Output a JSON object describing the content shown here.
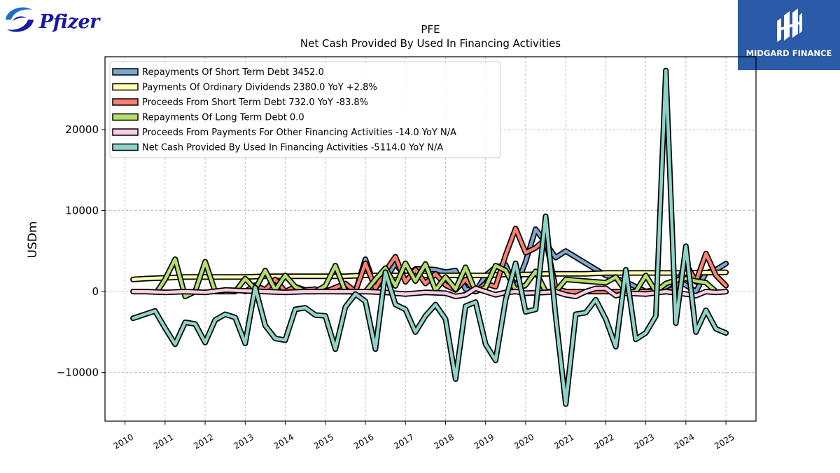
{
  "logo_left": {
    "text": "Pfizer",
    "icon": "pfizer-swirl-icon",
    "color": "#1a1aa6"
  },
  "logo_right": {
    "text": "MIDGARD FINANCE",
    "icon": "midgard-m-icon",
    "background": "#2a5aa8"
  },
  "chart_data": {
    "type": "line",
    "title": "PFE",
    "subtitle": "Net Cash Provided By Used In Financing Activities",
    "xlabel": "",
    "ylabel": "USDm",
    "xlim": [
      2009.5,
      2025.75
    ],
    "ylim": [
      -16000,
      29000
    ],
    "x_ticks": [
      "2010",
      "2011",
      "2012",
      "2013",
      "2014",
      "2015",
      "2016",
      "2017",
      "2018",
      "2019",
      "2020",
      "2021",
      "2022",
      "2023",
      "2024",
      "2025"
    ],
    "y_ticks": [
      -10000,
      0,
      10000,
      20000
    ],
    "y_tick_labels": [
      "−10000",
      "0",
      "10000",
      "20000"
    ],
    "grid": true,
    "legend_position": "top-left",
    "series": [
      {
        "name": "Repayments Of Short Term Debt",
        "legend": "Repayments Of Short Term Debt  3452.0",
        "color": "#7ba7cf",
        "points": [
          [
            2015.25,
            0
          ],
          [
            2015.5,
            0
          ],
          [
            2015.75,
            0
          ],
          [
            2016.0,
            4000
          ],
          [
            2016.25,
            500
          ],
          [
            2016.5,
            1500
          ],
          [
            2016.75,
            3500
          ],
          [
            2017.0,
            1800
          ],
          [
            2017.25,
            2800
          ],
          [
            2017.5,
            2800
          ],
          [
            2017.75,
            2700
          ],
          [
            2018.0,
            2400
          ],
          [
            2018.25,
            2600
          ],
          [
            2018.5,
            300
          ],
          [
            2018.75,
            0
          ],
          [
            2019.0,
            2000
          ],
          [
            2019.25,
            3000
          ],
          [
            2019.5,
            3300
          ],
          [
            2019.75,
            500
          ],
          [
            2020.0,
            3700
          ],
          [
            2020.25,
            7700
          ],
          [
            2020.5,
            6000
          ],
          [
            2020.75,
            4200
          ],
          [
            2021.0,
            5000
          ],
          [
            2021.5,
            3500
          ],
          [
            2022.0,
            2000
          ],
          [
            2022.5,
            1200
          ],
          [
            2023.0,
            0
          ],
          [
            2023.5,
            500
          ],
          [
            2023.75,
            1500
          ],
          [
            2024.0,
            800
          ],
          [
            2024.25,
            0
          ],
          [
            2024.5,
            2300
          ],
          [
            2024.75,
            2700
          ],
          [
            2025.0,
            3452
          ]
        ]
      },
      {
        "name": "Payments Of Ordinary Dividends",
        "legend": "Payments Of Ordinary Dividends  2380.0 YoY +2.8%",
        "color": "#ffffb3",
        "points": [
          [
            2010.2,
            1500
          ],
          [
            2010.5,
            1600
          ],
          [
            2011.0,
            1700
          ],
          [
            2011.5,
            1800
          ],
          [
            2012.0,
            1800
          ],
          [
            2012.5,
            1800
          ],
          [
            2013.0,
            1800
          ],
          [
            2013.5,
            1900
          ],
          [
            2014.0,
            1900
          ],
          [
            2014.5,
            1900
          ],
          [
            2015.0,
            1900
          ],
          [
            2015.5,
            1900
          ],
          [
            2016.0,
            2000
          ],
          [
            2016.5,
            2000
          ],
          [
            2017.0,
            2000
          ],
          [
            2017.5,
            2000
          ],
          [
            2018.0,
            2000
          ],
          [
            2018.5,
            2000
          ],
          [
            2019.0,
            2000
          ],
          [
            2019.5,
            2100
          ],
          [
            2020.0,
            2100
          ],
          [
            2020.5,
            2200
          ],
          [
            2021.0,
            2200
          ],
          [
            2021.5,
            2200
          ],
          [
            2022.0,
            2300
          ],
          [
            2022.5,
            2300
          ],
          [
            2023.0,
            2300
          ],
          [
            2023.5,
            2300
          ],
          [
            2024.0,
            2300
          ],
          [
            2024.5,
            2350
          ],
          [
            2025.0,
            2380
          ]
        ]
      },
      {
        "name": "Proceeds From Short Term Debt",
        "legend": "Proceeds From Short Term Debt  732.0 YoY -83.8%",
        "color": "#fb8072",
        "points": [
          [
            2013.0,
            0
          ],
          [
            2013.25,
            800
          ],
          [
            2013.5,
            200
          ],
          [
            2013.75,
            1500
          ],
          [
            2014.0,
            0
          ],
          [
            2014.25,
            600
          ],
          [
            2014.5,
            200
          ],
          [
            2014.75,
            300
          ],
          [
            2015.0,
            0
          ],
          [
            2015.5,
            1000
          ],
          [
            2015.75,
            0
          ],
          [
            2016.0,
            3500
          ],
          [
            2016.25,
            400
          ],
          [
            2016.5,
            2500
          ],
          [
            2016.75,
            4300
          ],
          [
            2017.0,
            1200
          ],
          [
            2017.25,
            2700
          ],
          [
            2017.5,
            1000
          ],
          [
            2017.75,
            2200
          ],
          [
            2018.0,
            800
          ],
          [
            2018.25,
            200
          ],
          [
            2018.5,
            1500
          ],
          [
            2018.75,
            0
          ],
          [
            2019.0,
            1000
          ],
          [
            2019.25,
            600
          ],
          [
            2019.5,
            4500
          ],
          [
            2019.75,
            7800
          ],
          [
            2020.0,
            4800
          ],
          [
            2020.25,
            5400
          ],
          [
            2020.5,
            6500
          ],
          [
            2020.75,
            400
          ],
          [
            2021.0,
            0
          ],
          [
            2021.5,
            0
          ],
          [
            2022.0,
            0
          ],
          [
            2022.5,
            0
          ],
          [
            2023.0,
            0
          ],
          [
            2023.5,
            0
          ],
          [
            2023.75,
            500
          ],
          [
            2024.0,
            3500
          ],
          [
            2024.25,
            1200
          ],
          [
            2024.5,
            4700
          ],
          [
            2024.75,
            2000
          ],
          [
            2025.0,
            732
          ]
        ]
      },
      {
        "name": "Repayments Of Long Term Debt",
        "legend": "Repayments Of Long Term Debt  0.0",
        "color": "#b3de69",
        "points": [
          [
            2010.8,
            0
          ],
          [
            2011.0,
            1500
          ],
          [
            2011.25,
            4000
          ],
          [
            2011.5,
            -600
          ],
          [
            2011.75,
            0
          ],
          [
            2012.0,
            3700
          ],
          [
            2012.25,
            0
          ],
          [
            2012.5,
            0
          ],
          [
            2012.75,
            0
          ],
          [
            2013.0,
            1600
          ],
          [
            2013.25,
            300
          ],
          [
            2013.5,
            2600
          ],
          [
            2013.75,
            200
          ],
          [
            2014.0,
            2000
          ],
          [
            2014.25,
            600
          ],
          [
            2014.5,
            0
          ],
          [
            2014.75,
            0
          ],
          [
            2015.0,
            700
          ],
          [
            2015.25,
            3200
          ],
          [
            2015.5,
            0
          ],
          [
            2015.75,
            0
          ],
          [
            2016.0,
            0
          ],
          [
            2016.25,
            1500
          ],
          [
            2016.5,
            2900
          ],
          [
            2016.75,
            700
          ],
          [
            2017.0,
            3500
          ],
          [
            2017.25,
            1300
          ],
          [
            2017.5,
            3400
          ],
          [
            2017.75,
            200
          ],
          [
            2018.0,
            1800
          ],
          [
            2018.25,
            300
          ],
          [
            2018.5,
            3000
          ],
          [
            2018.75,
            0
          ],
          [
            2019.0,
            500
          ],
          [
            2019.25,
            3200
          ],
          [
            2019.5,
            2600
          ],
          [
            2019.75,
            200
          ],
          [
            2020.0,
            800
          ],
          [
            2020.25,
            2500
          ],
          [
            2020.5,
            0
          ],
          [
            2020.75,
            0
          ],
          [
            2021.0,
            1500
          ],
          [
            2021.5,
            1300
          ],
          [
            2022.0,
            1100
          ],
          [
            2022.25,
            1800
          ],
          [
            2022.5,
            0
          ],
          [
            2022.75,
            0
          ],
          [
            2023.0,
            2000
          ],
          [
            2023.25,
            0
          ],
          [
            2023.5,
            1000
          ],
          [
            2023.75,
            1400
          ],
          [
            2024.0,
            1600
          ],
          [
            2024.25,
            1300
          ],
          [
            2024.5,
            1100
          ],
          [
            2024.75,
            0
          ]
        ]
      },
      {
        "name": "Proceeds From Payments For Other Financing Activities",
        "legend": "Proceeds From Payments For Other Financing Activities  -14.0 YoY N/A",
        "color": "#fccde5",
        "points": [
          [
            2010.2,
            0
          ],
          [
            2010.5,
            0
          ],
          [
            2011.0,
            -100
          ],
          [
            2011.5,
            0
          ],
          [
            2012.0,
            -100
          ],
          [
            2012.5,
            200
          ],
          [
            2013.0,
            100
          ],
          [
            2013.5,
            0
          ],
          [
            2014.0,
            -100
          ],
          [
            2014.5,
            0
          ],
          [
            2015.0,
            0
          ],
          [
            2015.5,
            0
          ],
          [
            2016.0,
            0
          ],
          [
            2016.5,
            -100
          ],
          [
            2017.0,
            -300
          ],
          [
            2017.5,
            -100
          ],
          [
            2018.0,
            -200
          ],
          [
            2018.25,
            -600
          ],
          [
            2018.5,
            -400
          ],
          [
            2018.75,
            400
          ],
          [
            2019.0,
            0
          ],
          [
            2019.25,
            -400
          ],
          [
            2019.5,
            -100
          ],
          [
            2019.75,
            0
          ],
          [
            2020.0,
            -200
          ],
          [
            2020.5,
            -100
          ],
          [
            2020.75,
            0
          ],
          [
            2021.0,
            -400
          ],
          [
            2021.25,
            -600
          ],
          [
            2021.5,
            0
          ],
          [
            2021.75,
            400
          ],
          [
            2022.0,
            400
          ],
          [
            2022.25,
            -500
          ],
          [
            2022.5,
            -200
          ],
          [
            2023.0,
            -300
          ],
          [
            2023.5,
            0
          ],
          [
            2024.0,
            -300
          ],
          [
            2024.25,
            -500
          ],
          [
            2024.5,
            0
          ],
          [
            2024.75,
            -100
          ],
          [
            2025.0,
            -14
          ]
        ]
      },
      {
        "name": "Net Cash Provided By Used In Financing Activities",
        "legend": "Net Cash Provided By Used In Financing Activities  -5114.0 YoY N/A",
        "color": "#8dd3c7",
        "points": [
          [
            2010.2,
            -3300
          ],
          [
            2010.5,
            -2800
          ],
          [
            2010.75,
            -2400
          ],
          [
            2011.0,
            -4500
          ],
          [
            2011.25,
            -6500
          ],
          [
            2011.5,
            -3800
          ],
          [
            2011.75,
            -4000
          ],
          [
            2012.0,
            -6300
          ],
          [
            2012.25,
            -3500
          ],
          [
            2012.5,
            -2800
          ],
          [
            2012.75,
            -3200
          ],
          [
            2013.0,
            -6400
          ],
          [
            2013.25,
            500
          ],
          [
            2013.5,
            -4200
          ],
          [
            2013.75,
            -5800
          ],
          [
            2014.0,
            -6000
          ],
          [
            2014.25,
            -2200
          ],
          [
            2014.5,
            -2000
          ],
          [
            2014.75,
            -2900
          ],
          [
            2015.0,
            -3000
          ],
          [
            2015.25,
            -7100
          ],
          [
            2015.5,
            -1900
          ],
          [
            2015.75,
            -300
          ],
          [
            2016.0,
            -1200
          ],
          [
            2016.25,
            -7100
          ],
          [
            2016.5,
            2400
          ],
          [
            2016.75,
            -1600
          ],
          [
            2017.0,
            -2200
          ],
          [
            2017.25,
            -5000
          ],
          [
            2017.5,
            -3000
          ],
          [
            2017.75,
            -1600
          ],
          [
            2018.0,
            -3400
          ],
          [
            2018.25,
            -10800
          ],
          [
            2018.5,
            -1800
          ],
          [
            2018.75,
            -1300
          ],
          [
            2019.0,
            -6500
          ],
          [
            2019.25,
            -8500
          ],
          [
            2019.5,
            -1000
          ],
          [
            2019.75,
            3500
          ],
          [
            2020.0,
            -2500
          ],
          [
            2020.25,
            -2200
          ],
          [
            2020.5,
            9300
          ],
          [
            2020.75,
            -3000
          ],
          [
            2021.0,
            -13900
          ],
          [
            2021.25,
            -2800
          ],
          [
            2021.5,
            -2600
          ],
          [
            2021.75,
            -1000
          ],
          [
            2022.0,
            -3400
          ],
          [
            2022.25,
            -6800
          ],
          [
            2022.5,
            2700
          ],
          [
            2022.75,
            -5900
          ],
          [
            2023.0,
            -5100
          ],
          [
            2023.25,
            -3000
          ],
          [
            2023.5,
            27300
          ],
          [
            2023.75,
            -3900
          ],
          [
            2024.0,
            5600
          ],
          [
            2024.25,
            -5000
          ],
          [
            2024.5,
            -2300
          ],
          [
            2024.75,
            -4600
          ],
          [
            2025.0,
            -5114
          ]
        ]
      }
    ]
  }
}
